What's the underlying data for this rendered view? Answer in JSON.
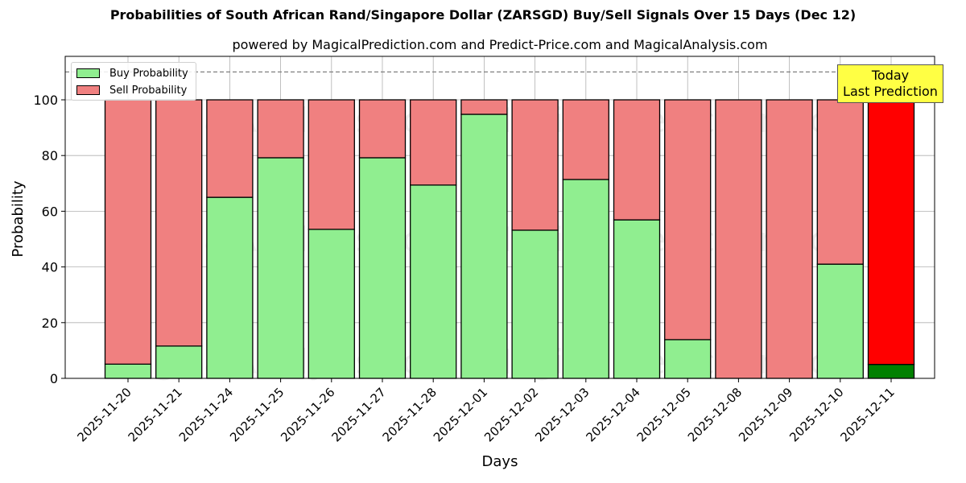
{
  "chart_data": {
    "type": "bar",
    "stacked": true,
    "title": "Probabilities of South African Rand/Singapore Dollar (ZARSGD) Buy/Sell Signals Over 15 Days (Dec 12)",
    "subtitle": "powered by MagicalPrediction.com and Predict-Price.com and MagicalAnalysis.com",
    "xlabel": "Days",
    "ylabel": "Probability",
    "ylim": [
      0,
      115
    ],
    "yticks": [
      0,
      20,
      40,
      60,
      80,
      100
    ],
    "grid": true,
    "legend_position": "upper left",
    "reference_line": {
      "y": 110,
      "style": "dashed",
      "color": "#808080"
    },
    "categories": [
      "2025-11-20",
      "2025-11-21",
      "2025-11-24",
      "2025-11-25",
      "2025-11-26",
      "2025-11-27",
      "2025-11-28",
      "2025-12-01",
      "2025-12-02",
      "2025-12-03",
      "2025-12-04",
      "2025-12-05",
      "2025-12-08",
      "2025-12-09",
      "2025-12-10",
      "2025-12-11"
    ],
    "series": [
      {
        "name": "Buy Probability",
        "color": "#90ee90",
        "values": [
          5.1,
          11.6,
          65.0,
          79.2,
          53.5,
          79.2,
          69.4,
          94.8,
          53.2,
          71.4,
          56.9,
          13.9,
          0,
          0,
          41.0,
          5.0
        ]
      },
      {
        "name": "Sell Probability",
        "color": "#f08080",
        "values": [
          94.9,
          88.4,
          35.0,
          20.8,
          46.5,
          20.8,
          30.6,
          5.2,
          46.8,
          28.6,
          43.1,
          86.1,
          100,
          100,
          59.0,
          95.0
        ]
      }
    ],
    "highlight": {
      "index": 15,
      "buy_color": "#008000",
      "sell_color": "#ff0000"
    },
    "annotation": {
      "text_line1": "Today",
      "text_line2": "Last Prediction",
      "background": "#ffff44"
    },
    "watermarks": [
      "MagicalAnalysis.com",
      "MagicalPrediction.com"
    ]
  },
  "legend": {
    "buy_label": "Buy Probability",
    "sell_label": "Sell Probability"
  }
}
